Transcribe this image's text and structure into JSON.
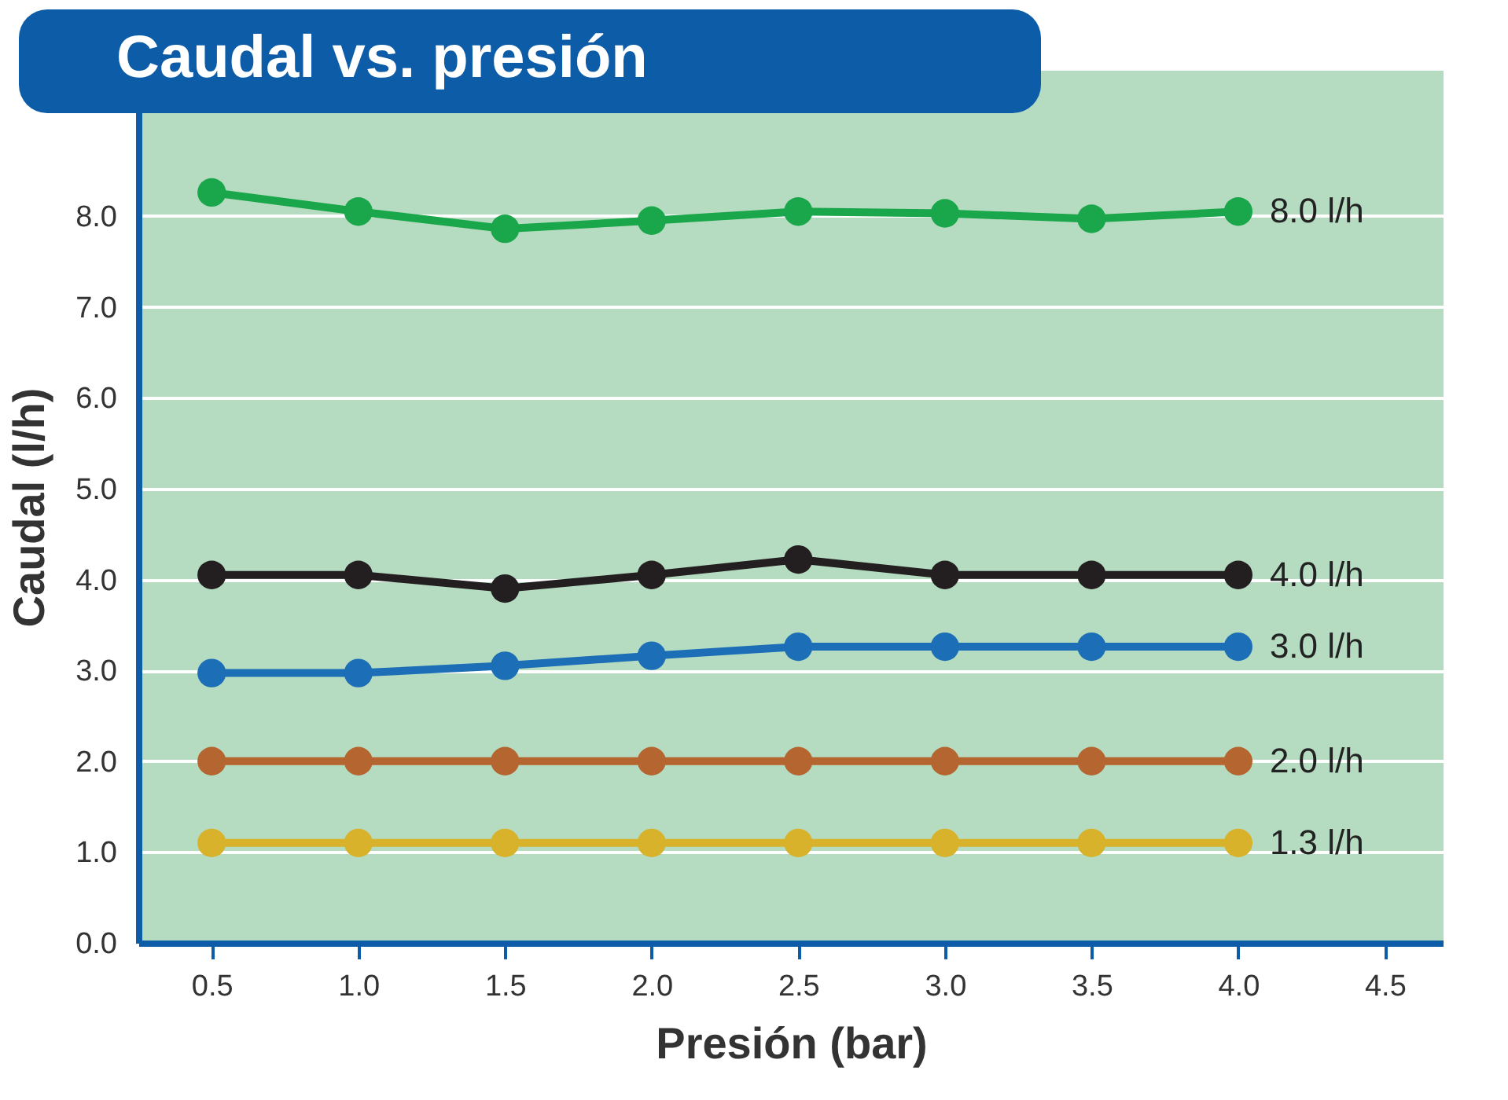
{
  "chart_data": {
    "type": "line",
    "title": "Caudal vs. presión",
    "xlabel": "Presión (bar)",
    "ylabel": "Caudal (l/h)",
    "x": [
      0.5,
      1.0,
      1.5,
      2.0,
      2.5,
      3.0,
      3.5,
      4.0
    ],
    "series": [
      {
        "name": "8.0 l/h",
        "color": "#1aa64a",
        "values": [
          8.26,
          8.05,
          7.86,
          7.95,
          8.05,
          8.03,
          7.97,
          8.05
        ]
      },
      {
        "name": "4.0 l/h",
        "color": "#231f20",
        "values": [
          4.05,
          4.05,
          3.9,
          4.05,
          4.22,
          4.05,
          4.05,
          4.05
        ]
      },
      {
        "name": "3.0 l/h",
        "color": "#1c6fb7",
        "values": [
          2.97,
          2.97,
          3.05,
          3.16,
          3.26,
          3.26,
          3.26,
          3.26
        ]
      },
      {
        "name": "2.0 l/h",
        "color": "#b5652f",
        "values": [
          2.0,
          2.0,
          2.0,
          2.0,
          2.0,
          2.0,
          2.0,
          2.0
        ]
      },
      {
        "name": "1.3 l/h",
        "color": "#d9b22b",
        "values": [
          1.1,
          1.1,
          1.1,
          1.1,
          1.1,
          1.1,
          1.1,
          1.1
        ]
      }
    ],
    "xlim": [
      0.25,
      4.7
    ],
    "xticks": [
      0.5,
      {
        "value": 1,
        "label": "1.0"
      },
      1.5,
      {
        "value": 2,
        "label": "2.0"
      },
      2.5,
      {
        "value": 3,
        "label": "3.0"
      },
      3.5,
      {
        "value": 4,
        "label": "4.0"
      },
      4.5
    ],
    "ylim": [
      0,
      9.6
    ],
    "yticks": [
      {
        "value": 0,
        "label": "0.0"
      },
      {
        "value": 1,
        "label": "1.0"
      },
      {
        "value": 2,
        "label": "2.0"
      },
      {
        "value": 3,
        "label": "3.0"
      },
      {
        "value": 4,
        "label": "4.0"
      },
      {
        "value": 5,
        "label": "5.0"
      },
      {
        "value": 6,
        "label": "6.0"
      },
      {
        "value": 7,
        "label": "7.0"
      },
      {
        "value": 8,
        "label": "8.0"
      }
    ],
    "grid": "y",
    "marker": "circle",
    "line_style": "solid"
  }
}
